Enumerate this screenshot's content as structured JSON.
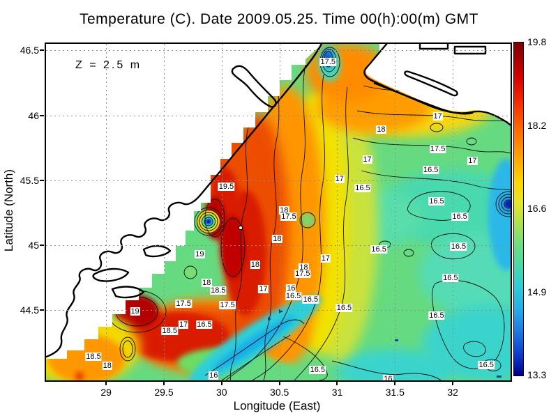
{
  "title": "Temperature (C). Date 2009.05.25. Time 00(h):00(m) GMT",
  "annotation": "Z = 2.5 m",
  "xlabel": "Longitude (East)",
  "ylabel": "Latitude (North)",
  "palette": {
    "max_color": "#7f0000",
    "warm_color": "#e83200",
    "mid_color": "#66da80",
    "cool_color": "#25aee8",
    "min_color": "#00007f",
    "grid_color": "#8d8d8d",
    "land_color": "#ffffff",
    "coast_color": "#000000"
  },
  "chart_data": {
    "type": "heatmap",
    "title": "Temperature (C). Date 2009.05.25. Time 00(h):00(m) GMT",
    "depth_annotation": "Z = 2.5 m",
    "xlabel": "Longitude (East)",
    "ylabel": "Latitude (North)",
    "xlim": [
      28.48,
      32.5
    ],
    "ylim": [
      43.96,
      46.55
    ],
    "grid": true,
    "x_ticks": [
      {
        "v": 29,
        "label": "29"
      },
      {
        "v": 29.5,
        "label": "29.5"
      },
      {
        "v": 30,
        "label": "30"
      },
      {
        "v": 30.5,
        "label": "30.5"
      },
      {
        "v": 31,
        "label": "31"
      },
      {
        "v": 31.5,
        "label": "31.5"
      },
      {
        "v": 32,
        "label": "32"
      }
    ],
    "y_ticks": [
      {
        "v": 46.5,
        "label": "46.5"
      },
      {
        "v": 46,
        "label": "46"
      },
      {
        "v": 45.5,
        "label": "45.5"
      },
      {
        "v": 45,
        "label": "45"
      },
      {
        "v": 44.5,
        "label": "44.5"
      }
    ],
    "colorbar": {
      "min": 13.3,
      "max": 19.8,
      "tick_labels": [
        "19.8",
        "18.2",
        "16.6",
        "14.9",
        "13.3"
      ]
    },
    "contour_interval": 0.5,
    "contour_labels": [
      {
        "value": "17.5",
        "lon": 30.92,
        "lat": 46.41
      },
      {
        "value": "17",
        "lon": 31.87,
        "lat": 45.99
      },
      {
        "value": "18",
        "lon": 31.38,
        "lat": 45.89
      },
      {
        "value": "17.5",
        "lon": 31.87,
        "lat": 45.74
      },
      {
        "value": "17",
        "lon": 31.26,
        "lat": 45.66
      },
      {
        "value": "17",
        "lon": 32.17,
        "lat": 45.65
      },
      {
        "value": "16.5",
        "lon": 31.81,
        "lat": 45.58
      },
      {
        "value": "17",
        "lon": 31.02,
        "lat": 45.51
      },
      {
        "value": "19.5",
        "lon": 30.04,
        "lat": 45.45
      },
      {
        "value": "16.5",
        "lon": 31.22,
        "lat": 45.44
      },
      {
        "value": "16.5",
        "lon": 31.86,
        "lat": 45.34
      },
      {
        "value": "18",
        "lon": 30.54,
        "lat": 45.27
      },
      {
        "value": "17.5",
        "lon": 30.58,
        "lat": 45.22
      },
      {
        "value": "16.5",
        "lon": 32.06,
        "lat": 45.22
      },
      {
        "value": "18",
        "lon": 30.48,
        "lat": 45.05
      },
      {
        "value": "16.5",
        "lon": 31.36,
        "lat": 44.97
      },
      {
        "value": "16.5",
        "lon": 32.05,
        "lat": 44.99
      },
      {
        "value": "19",
        "lon": 29.81,
        "lat": 44.93
      },
      {
        "value": "17",
        "lon": 30.9,
        "lat": 44.9
      },
      {
        "value": "18",
        "lon": 30.29,
        "lat": 44.85
      },
      {
        "value": "18",
        "lon": 30.71,
        "lat": 44.83
      },
      {
        "value": "17.5",
        "lon": 30.7,
        "lat": 44.78
      },
      {
        "value": "16.5",
        "lon": 31.98,
        "lat": 44.75
      },
      {
        "value": "18",
        "lon": 29.87,
        "lat": 44.71
      },
      {
        "value": "17",
        "lon": 30.36,
        "lat": 44.66
      },
      {
        "value": "16",
        "lon": 30.6,
        "lat": 44.67
      },
      {
        "value": "18.5",
        "lon": 29.97,
        "lat": 44.65
      },
      {
        "value": "16.5",
        "lon": 30.62,
        "lat": 44.61
      },
      {
        "value": "16.5",
        "lon": 30.77,
        "lat": 44.58
      },
      {
        "value": "17.5",
        "lon": 29.67,
        "lat": 44.55
      },
      {
        "value": "17.5",
        "lon": 30.05,
        "lat": 44.54
      },
      {
        "value": "16.5",
        "lon": 31.06,
        "lat": 44.52
      },
      {
        "value": "19",
        "lon": 29.25,
        "lat": 44.49
      },
      {
        "value": "16.5",
        "lon": 31.86,
        "lat": 44.46
      },
      {
        "value": "17",
        "lon": 29.67,
        "lat": 44.39
      },
      {
        "value": "16.5",
        "lon": 29.85,
        "lat": 44.39
      },
      {
        "value": "18.5",
        "lon": 29.55,
        "lat": 44.34
      },
      {
        "value": "18.5",
        "lon": 28.89,
        "lat": 44.14
      },
      {
        "value": "16.5",
        "lon": 32.29,
        "lat": 44.08
      },
      {
        "value": "18",
        "lon": 29.01,
        "lat": 44.07
      },
      {
        "value": "16.5",
        "lon": 30.83,
        "lat": 44.04
      },
      {
        "value": "16",
        "lon": 29.93,
        "lat": 44.0
      },
      {
        "value": "16",
        "lon": 31.44,
        "lat": 43.97
      }
    ]
  }
}
